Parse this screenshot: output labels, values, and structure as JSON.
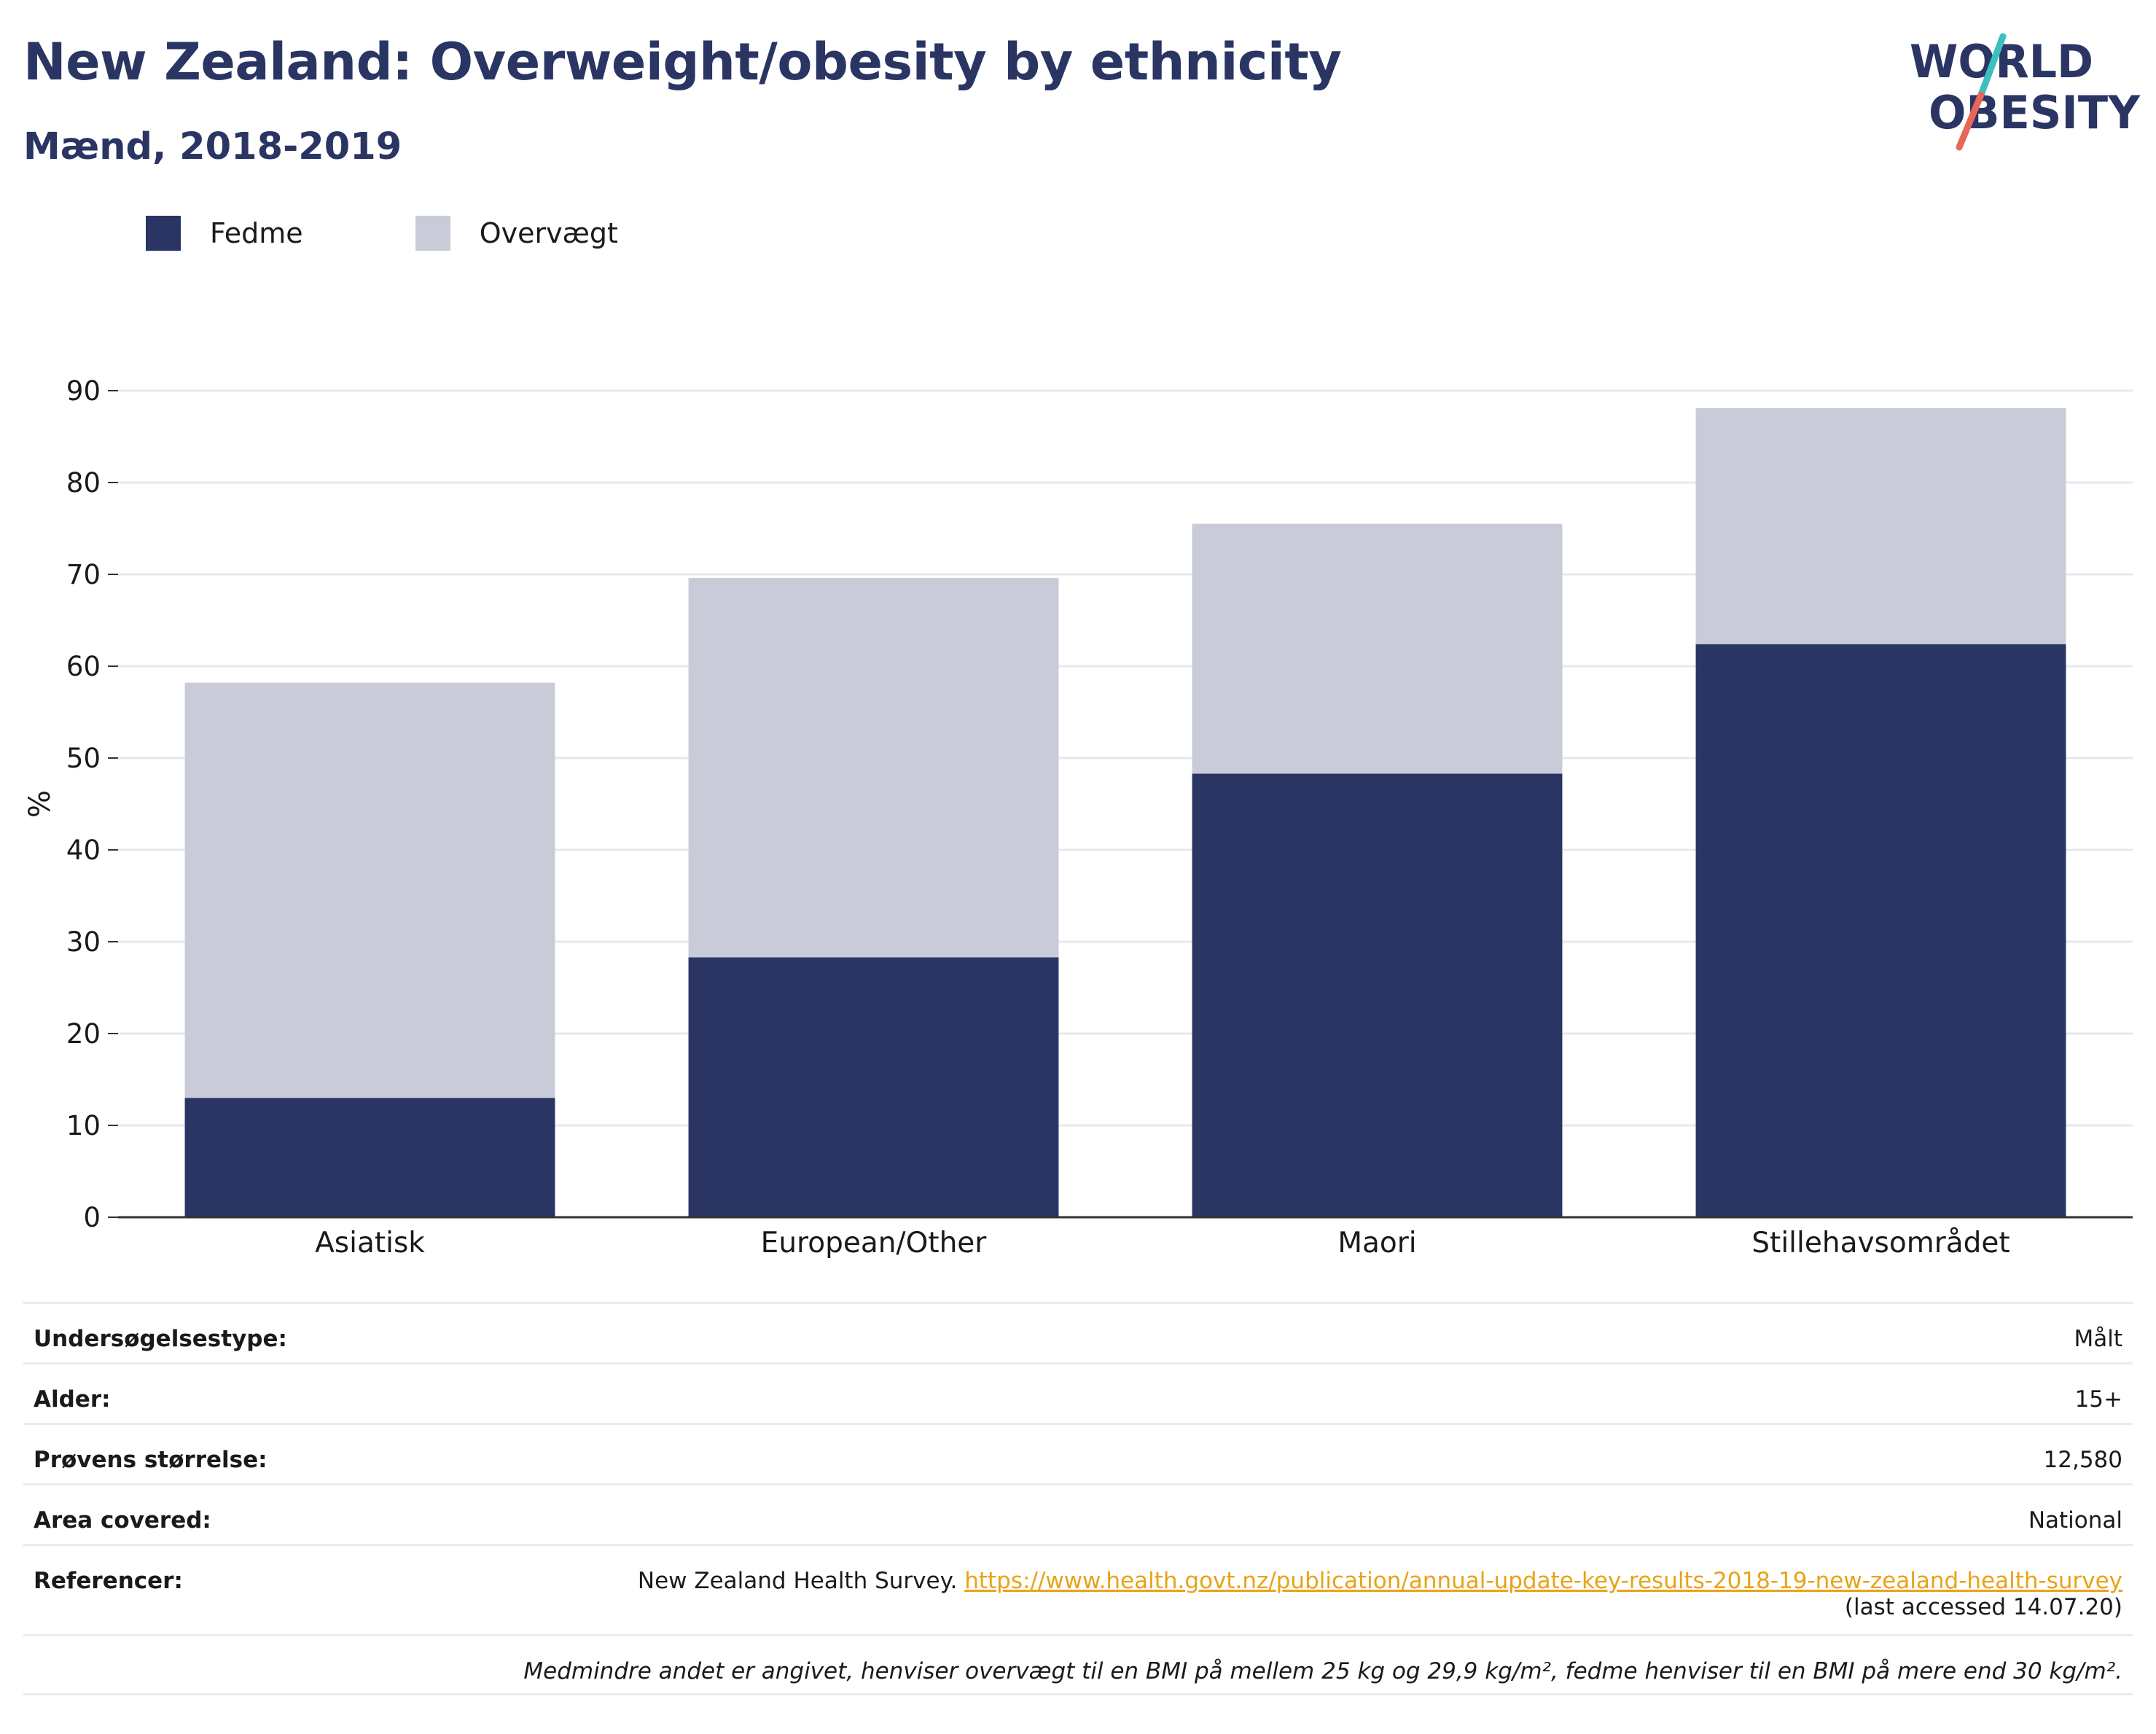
{
  "header": {
    "title": "New Zealand: Overweight/obesity by ethnicity",
    "subtitle": "Mænd, 2018-2019"
  },
  "logo": {
    "line1": "WORLD",
    "line2": "OBESITY"
  },
  "colors": {
    "fedme": "#2a3563",
    "overvaegt": "#c9ccd8",
    "title": "#2a3563",
    "link": "#e8a317",
    "logo_teal": "#3cbfbf",
    "logo_coral": "#e8675a"
  },
  "chart_data": {
    "type": "bar",
    "stacked": true,
    "categories": [
      "Asiatisk",
      "European/Other",
      "Maori",
      "Stillehavsområdet"
    ],
    "series": [
      {
        "name": "Fedme",
        "values": [
          13.0,
          28.3,
          48.3,
          62.4
        ]
      },
      {
        "name": "Overvægt",
        "values": [
          45.2,
          41.3,
          27.2,
          25.7
        ]
      }
    ],
    "ylabel": "%",
    "xlabel": "",
    "ylim": [
      0,
      90
    ],
    "yticks": [
      "0",
      "10",
      "20",
      "30",
      "40",
      "50",
      "60",
      "70",
      "80",
      "90"
    ],
    "grid": true,
    "legend_position": "top-left"
  },
  "info": {
    "rows": [
      {
        "label": "Undersøgelsestype:",
        "value": "Målt"
      },
      {
        "label": "Alder:",
        "value": "15+"
      },
      {
        "label": "Prøvens størrelse:",
        "value": "12,580"
      },
      {
        "label": "Area covered:",
        "value": "National"
      }
    ],
    "references": {
      "label": "Referencer:",
      "text": "New Zealand Health Survey.",
      "url": "https://www.health.govt.nz/publication/annual-update-key-results-2018-19-new-zealand-health-survey",
      "accessed": "(last accessed 14.07.20)"
    },
    "note": "Medmindre andet er angivet, henviser overvægt til en BMI på mellem 25 kg og 29,9 kg/m², fedme henviser til en BMI på mere end 30 kg/m²."
  }
}
